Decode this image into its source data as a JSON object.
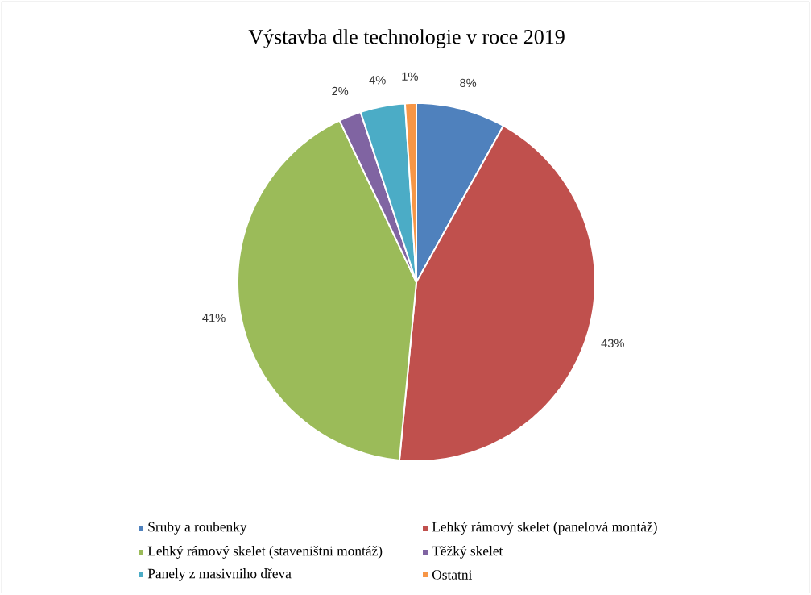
{
  "chart_data": {
    "type": "pie",
    "title": "Výstavba dle technologie v roce 2019",
    "categories": [
      "Sruby a roubenky",
      "Lehký rámový skelet (panelová montáž)",
      "Lehký rámový skelet (staveništni montáž)",
      "Těžký skelet",
      "Panely z masivniho dřeva",
      "Ostatni"
    ],
    "values": [
      8,
      43,
      41,
      2,
      4,
      1
    ],
    "value_labels": [
      "8%",
      "43%",
      "41%",
      "2%",
      "4%",
      "1%"
    ],
    "colors": [
      "#4f81bd",
      "#c0504d",
      "#9bbb59",
      "#8064a2",
      "#4bacc6",
      "#f79646"
    ],
    "legend": "bottom"
  }
}
